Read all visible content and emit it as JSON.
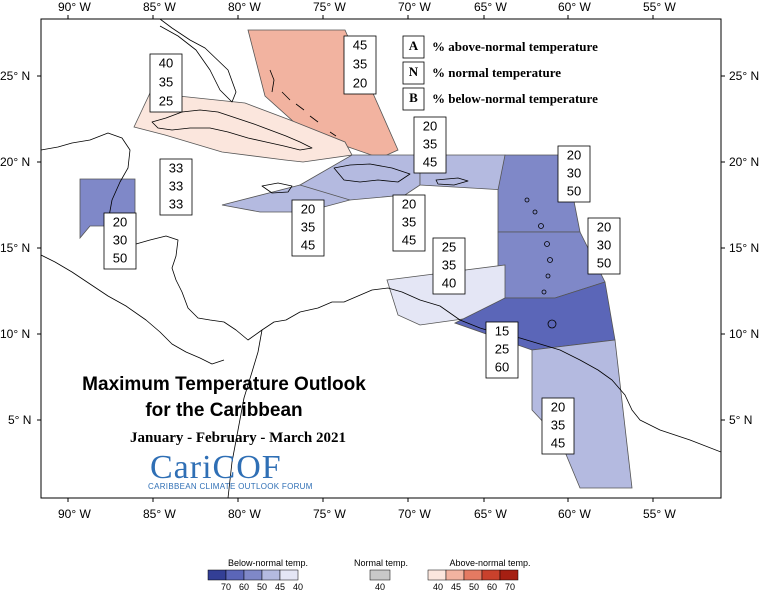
{
  "map": {
    "title_line1": "Maximum Temperature Outlook",
    "title_line2": "for the Caribbean",
    "period": "January - February - March 2021",
    "logo": {
      "name": "CariCOF",
      "subtitle": "CARIBBEAN CLIMATE OUTLOOK FORUM"
    },
    "lon_labels": [
      "90° W",
      "85° W",
      "80° W",
      "75° W",
      "70° W",
      "65° W",
      "60° W",
      "55° W"
    ],
    "lat_labels": [
      "25° N",
      "20° N",
      "15° N",
      "10° N",
      "5° N"
    ],
    "key": [
      {
        "letter": "A",
        "text": "% above-normal temperature"
      },
      {
        "letter": "N",
        "text": "% normal temperature"
      },
      {
        "letter": "B",
        "text": "% below-normal temperature"
      }
    ],
    "regions": [
      {
        "id": "bahamas",
        "above": "45",
        "normal": "35",
        "below": "20",
        "category": "above-45",
        "color": "#f2b3a0"
      },
      {
        "id": "cuba",
        "above": "40",
        "normal": "35",
        "below": "25",
        "category": "above-40",
        "color": "#fbe6dd"
      },
      {
        "id": "belize",
        "above": "20",
        "normal": "30",
        "below": "50",
        "category": "below-50",
        "color": "#7f88c8"
      },
      {
        "id": "jamaica",
        "above": "20",
        "normal": "35",
        "below": "45",
        "category": "below-45",
        "color": "#b4bae0"
      },
      {
        "id": "cayman",
        "above": "33",
        "normal": "33",
        "below": "33",
        "category": "climatology",
        "color": "#ffffff"
      },
      {
        "id": "hispaniola",
        "above": "20",
        "normal": "35",
        "below": "45",
        "category": "below-45",
        "color": "#b4bae0"
      },
      {
        "id": "puerto-rico",
        "above": "20",
        "normal": "35",
        "below": "45",
        "category": "below-45",
        "color": "#b4bae0"
      },
      {
        "id": "leeward",
        "above": "20",
        "normal": "30",
        "below": "50",
        "category": "below-50",
        "color": "#7f88c8"
      },
      {
        "id": "windward",
        "above": "20",
        "normal": "30",
        "below": "50",
        "category": "below-50",
        "color": "#7f88c8"
      },
      {
        "id": "abc-islands",
        "above": "25",
        "normal": "35",
        "below": "40",
        "category": "below-40",
        "color": "#e4e6f5"
      },
      {
        "id": "trinidad",
        "above": "15",
        "normal": "25",
        "below": "60",
        "category": "below-60",
        "color": "#5b66b8"
      },
      {
        "id": "guianas",
        "above": "20",
        "normal": "35",
        "below": "45",
        "category": "below-45",
        "color": "#b4bae0"
      }
    ]
  },
  "colorbar": {
    "below_title": "Below-normal temp.",
    "normal_title": "Normal temp.",
    "above_title": "Above-normal temp.",
    "below_colors": [
      "#333f96",
      "#5b66b8",
      "#7f88c8",
      "#b4bae0",
      "#e4e6f5"
    ],
    "below_ticks": [
      "70",
      "60",
      "50",
      "45",
      "40"
    ],
    "normal_color": "#c8c8c8",
    "normal_ticks": [
      "40"
    ],
    "above_colors": [
      "#fbe6dd",
      "#f2b3a0",
      "#e47a62",
      "#c9412c",
      "#a51f12"
    ],
    "above_ticks": [
      "40",
      "45",
      "50",
      "60",
      "70"
    ]
  }
}
